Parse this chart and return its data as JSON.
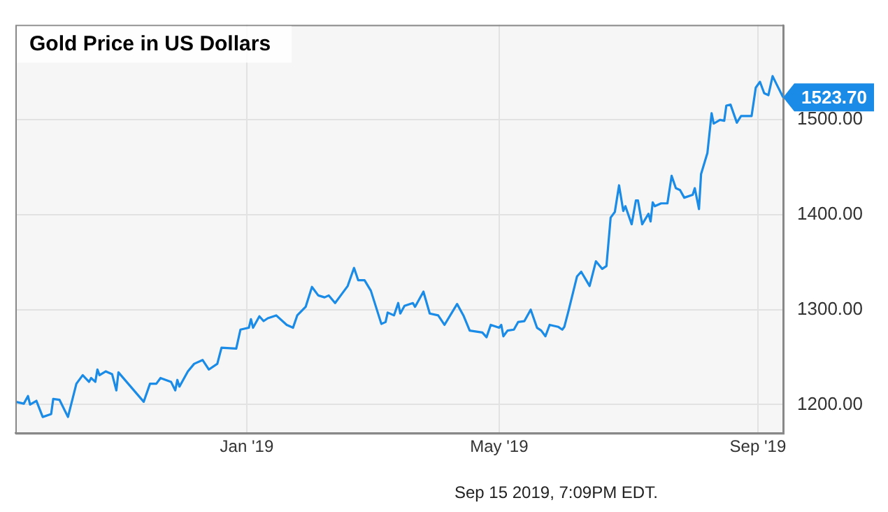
{
  "chart_data": {
    "type": "line",
    "title": "Gold Price in US Dollars",
    "x": [
      "2018-09-13",
      "2018-09-17",
      "2018-09-19",
      "2018-09-20",
      "2018-09-23",
      "2018-09-26",
      "2018-09-30",
      "2018-10-01",
      "2018-10-04",
      "2018-10-08",
      "2018-10-12",
      "2018-10-15",
      "2018-10-18",
      "2018-10-19",
      "2018-10-21",
      "2018-10-22",
      "2018-10-23",
      "2018-10-26",
      "2018-10-29",
      "2018-10-31",
      "2018-11-01",
      "2018-11-13",
      "2018-11-16",
      "2018-11-19",
      "2018-11-21",
      "2018-11-26",
      "2018-11-28",
      "2018-11-29",
      "2018-11-30",
      "2018-12-04",
      "2018-12-07",
      "2018-12-11",
      "2018-12-14",
      "2018-12-18",
      "2018-12-20",
      "2018-12-27",
      "2018-12-29",
      "2019-01-02",
      "2019-01-03",
      "2019-01-04",
      "2019-01-07",
      "2019-01-09",
      "2019-01-11",
      "2019-01-15",
      "2019-01-20",
      "2019-01-23",
      "2019-01-25",
      "2019-01-29",
      "2019-02-01",
      "2019-02-04",
      "2019-02-07",
      "2019-02-09",
      "2019-02-12",
      "2019-02-14",
      "2019-02-18",
      "2019-02-21",
      "2019-02-23",
      "2019-02-26",
      "2019-03-01",
      "2019-03-06",
      "2019-03-08",
      "2019-03-09",
      "2019-03-12",
      "2019-03-14",
      "2019-03-15",
      "2019-03-17",
      "2019-03-21",
      "2019-03-22",
      "2019-03-26",
      "2019-03-29",
      "2019-04-02",
      "2019-04-05",
      "2019-04-11",
      "2019-04-14",
      "2019-04-17",
      "2019-04-23",
      "2019-04-25",
      "2019-04-27",
      "2019-05-01",
      "2019-05-02",
      "2019-05-03",
      "2019-05-05",
      "2019-05-08",
      "2019-05-10",
      "2019-05-13",
      "2019-05-16",
      "2019-05-19",
      "2019-05-21",
      "2019-05-23",
      "2019-05-25",
      "2019-05-29",
      "2019-05-31",
      "2019-06-01",
      "2019-06-03",
      "2019-06-07",
      "2019-06-09",
      "2019-06-13",
      "2019-06-16",
      "2019-06-19",
      "2019-06-21",
      "2019-06-23",
      "2019-06-25",
      "2019-06-27",
      "2019-06-29",
      "2019-06-30",
      "2019-07-03",
      "2019-07-05",
      "2019-07-06",
      "2019-07-08",
      "2019-07-11",
      "2019-07-12",
      "2019-07-13",
      "2019-07-14",
      "2019-07-17",
      "2019-07-20",
      "2019-07-22",
      "2019-07-24",
      "2019-07-26",
      "2019-07-28",
      "2019-08-01",
      "2019-08-02",
      "2019-08-04",
      "2019-08-05",
      "2019-08-08",
      "2019-08-10",
      "2019-08-11",
      "2019-08-14",
      "2019-08-16",
      "2019-08-17",
      "2019-08-19",
      "2019-08-22",
      "2019-08-24",
      "2019-08-29",
      "2019-08-31",
      "2019-09-02",
      "2019-09-04",
      "2019-09-06",
      "2019-09-08",
      "2019-09-10",
      "2019-09-13"
    ],
    "series": [
      {
        "color": "#1a8be6",
        "values": [
          1203,
          1201,
          1209,
          1200,
          1204,
          1187,
          1190,
          1206,
          1205,
          1187,
          1222,
          1231,
          1224,
          1228,
          1224,
          1237,
          1231,
          1235,
          1232,
          1215,
          1234,
          1203,
          1222,
          1222,
          1228,
          1224,
          1215,
          1226,
          1219,
          1235,
          1243,
          1247,
          1237,
          1243,
          1260,
          1259,
          1279,
          1281,
          1290,
          1281,
          1293,
          1288,
          1291,
          1294,
          1284,
          1281,
          1294,
          1303,
          1324,
          1315,
          1313,
          1315,
          1307,
          1313,
          1325,
          1344,
          1331,
          1331,
          1320,
          1285,
          1287,
          1297,
          1294,
          1307,
          1296,
          1304,
          1307,
          1303,
          1319,
          1296,
          1294,
          1284,
          1306,
          1294,
          1278,
          1276,
          1271,
          1284,
          1281,
          1284,
          1272,
          1278,
          1279,
          1287,
          1288,
          1300,
          1281,
          1278,
          1272,
          1284,
          1282,
          1279,
          1282,
          1299,
          1335,
          1340,
          1325,
          1351,
          1343,
          1346,
          1397,
          1403,
          1431,
          1404,
          1409,
          1390,
          1415,
          1415,
          1390,
          1401,
          1393,
          1413,
          1409,
          1412,
          1412,
          1441,
          1428,
          1426,
          1418,
          1421,
          1428,
          1406,
          1443,
          1465,
          1507,
          1496,
          1500,
          1499,
          1515,
          1516,
          1497,
          1504,
          1504,
          1534,
          1540,
          1528,
          1526,
          1546,
          1537,
          1523.7
        ],
        "value_labels": [
          null,
          null,
          null,
          null,
          null,
          null,
          null,
          null,
          null,
          null,
          null,
          null,
          null,
          null,
          null,
          null,
          null,
          null,
          null,
          null,
          null,
          null,
          null,
          null,
          null,
          null,
          null,
          null,
          null,
          null,
          null,
          null,
          null,
          null,
          null,
          null,
          null,
          null,
          null,
          null,
          null,
          null,
          null,
          null,
          null,
          null,
          null,
          null,
          null,
          null,
          null,
          null,
          null,
          null,
          null,
          null,
          null,
          null,
          null,
          null,
          null,
          null,
          null,
          null,
          null,
          null,
          null,
          null,
          null,
          null,
          null,
          null,
          null,
          null,
          null,
          null,
          null,
          null,
          null,
          null,
          null,
          null,
          null,
          null,
          null,
          null,
          null,
          null,
          null,
          null,
          null,
          null,
          null,
          null,
          null,
          null,
          null,
          null,
          null,
          null,
          null,
          null,
          null,
          null,
          null,
          null,
          null,
          null,
          null,
          null,
          null,
          null,
          null,
          null,
          null,
          null,
          null,
          null,
          null,
          null,
          null,
          null,
          null,
          null,
          null,
          null,
          null,
          null,
          null,
          null,
          null,
          null,
          null,
          null,
          null,
          null,
          null,
          null,
          null,
          "1523.70"
        ]
      }
    ],
    "xlim": [
      "2018-09-13",
      "2019-09-13"
    ],
    "xticks": [
      {
        "value": "2019-01-01",
        "label": "Jan '19"
      },
      {
        "value": "2019-05-01",
        "label": "May '19"
      },
      {
        "value": "2019-09-01",
        "label": "Sep '19"
      }
    ],
    "ylim": [
      1170,
      1600
    ],
    "yticks": [
      {
        "value": 1200,
        "label": "1200.00"
      },
      {
        "value": 1300,
        "label": "1300.00"
      },
      {
        "value": 1400,
        "label": "1400.00"
      },
      {
        "value": 1500,
        "label": "1500.00"
      }
    ],
    "grid": true,
    "legend": false,
    "marker": "none",
    "line_style": "solid",
    "annotations": [
      "Sep 15 2019, 7:09PM EDT."
    ]
  }
}
